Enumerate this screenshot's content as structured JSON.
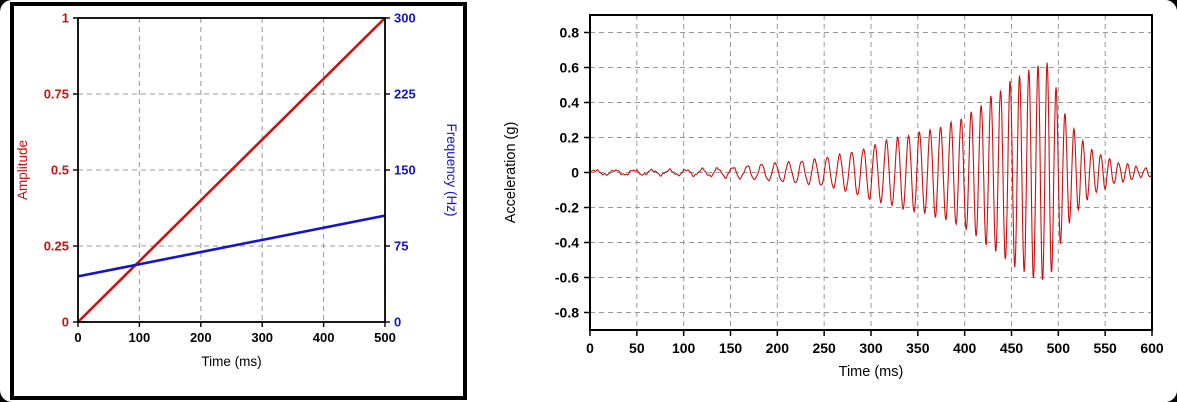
{
  "page": {
    "background": "#ffffff",
    "outer_background": "#000000"
  },
  "chart_data": [
    {
      "id": "input-sweep-chart",
      "type": "line",
      "title": "",
      "xlabel": "Time (ms)",
      "xlim": [
        0,
        500
      ],
      "x_ticks": [
        0,
        100,
        200,
        300,
        400,
        500
      ],
      "grid": "dashed",
      "grid_color": "#999999",
      "frame_color": "#000000",
      "left_axis": {
        "label": "Amplitude",
        "color": "#cc1111",
        "lim": [
          0,
          1
        ],
        "ticks": [
          0,
          0.25,
          0.5,
          0.75,
          1
        ]
      },
      "right_axis": {
        "label": "Frequency (Hz)",
        "color": "#1414cc",
        "lim": [
          0,
          300
        ],
        "ticks": [
          0,
          75,
          150,
          225,
          300
        ]
      },
      "series": [
        {
          "name": "amplitude",
          "axis": "left",
          "color": "#cc1111",
          "points": [
            [
              0,
              0
            ],
            [
              500,
              1
            ]
          ]
        },
        {
          "name": "frequency",
          "axis": "right",
          "color": "#1414cc",
          "points": [
            [
              0,
              45
            ],
            [
              500,
              105
            ]
          ]
        }
      ]
    },
    {
      "id": "acceleration-record-chart",
      "type": "line",
      "title": "",
      "xlabel": "Time (ms)",
      "ylabel": "Acceleration (g)",
      "xlim": [
        0,
        600
      ],
      "ylim": [
        -0.9,
        0.9
      ],
      "x_ticks": [
        0,
        50,
        100,
        150,
        200,
        250,
        300,
        350,
        400,
        450,
        500,
        550,
        600
      ],
      "y_ticks": [
        -0.8,
        -0.6,
        -0.4,
        -0.2,
        0,
        0.2,
        0.4,
        0.6,
        0.8
      ],
      "grid": "dashed",
      "grid_color": "#999999",
      "frame_color": "#000000",
      "line_color": "#cc1111",
      "signal": {
        "kind": "linear-chirp",
        "freq_start_hz": 45,
        "freq_end_hz": 105,
        "sweep_ms": 500,
        "peak_amplitude_g": 0.6,
        "peak_time_ms": 490,
        "growth_power": 3,
        "decay_tau_ms": 30,
        "noise_floor_g": 0.012,
        "sample_step_ms": 0.5
      }
    }
  ]
}
